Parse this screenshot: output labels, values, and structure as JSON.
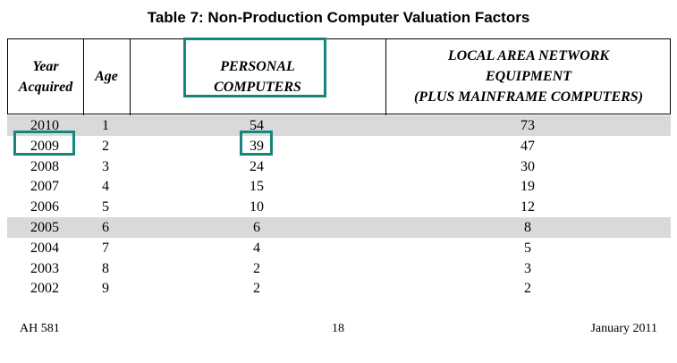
{
  "title": "Table 7: Non-Production Computer Valuation Factors",
  "headers": {
    "year_line1": "Year",
    "year_line2": "Acquired",
    "age": "Age",
    "pc_line1": "PERSONAL",
    "pc_line2": "COMPUTERS",
    "lan_line1": "LOCAL AREA NETWORK",
    "lan_line2": "EQUIPMENT",
    "lan_line3": "(PLUS MAINFRAME COMPUTERS)"
  },
  "rows": [
    {
      "year": "2010",
      "age": "1",
      "pc": "54",
      "lan": "73",
      "shaded": true
    },
    {
      "year": "2009",
      "age": "2",
      "pc": "39",
      "lan": "47",
      "shaded": false
    },
    {
      "year": "2008",
      "age": "3",
      "pc": "24",
      "lan": "30",
      "shaded": false
    },
    {
      "year": "2007",
      "age": "4",
      "pc": "15",
      "lan": "19",
      "shaded": false
    },
    {
      "year": "2006",
      "age": "5",
      "pc": "10",
      "lan": "12",
      "shaded": false
    },
    {
      "year": "2005",
      "age": "6",
      "pc": "6",
      "lan": "8",
      "shaded": true
    },
    {
      "year": "2004",
      "age": "7",
      "pc": "4",
      "lan": "5",
      "shaded": false
    },
    {
      "year": "2003",
      "age": "8",
      "pc": "2",
      "lan": "3",
      "shaded": false
    },
    {
      "year": "2002",
      "age": "9",
      "pc": "2",
      "lan": "2",
      "shaded": false
    }
  ],
  "footer": {
    "left": "AH 581",
    "center": "18",
    "right": "January 2011"
  },
  "colors": {
    "highlight": "#17857c",
    "shade": "#d9d9d9"
  }
}
